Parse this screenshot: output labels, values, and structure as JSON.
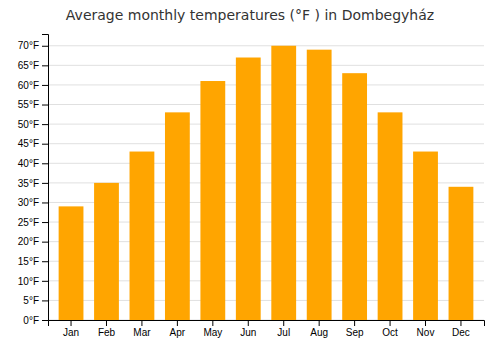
{
  "chart_data": {
    "type": "bar",
    "title": "Average monthly temperatures (°F ) in Dombegyház",
    "categories": [
      "Jan",
      "Feb",
      "Mar",
      "Apr",
      "May",
      "Jun",
      "Jul",
      "Aug",
      "Sep",
      "Oct",
      "Nov",
      "Dec"
    ],
    "values": [
      29,
      35,
      43,
      53,
      61,
      67,
      70,
      69,
      63,
      53,
      43,
      34
    ],
    "color": "#FFA500",
    "ylim": [
      0,
      73
    ],
    "yticks": [
      {
        "value": 0,
        "label": "0°F"
      },
      {
        "value": 5,
        "label": "5°F"
      },
      {
        "value": 10,
        "label": "10°F"
      },
      {
        "value": 15,
        "label": "15°F"
      },
      {
        "value": 20,
        "label": "20°F"
      },
      {
        "value": 25,
        "label": "25°F"
      },
      {
        "value": 30,
        "label": "30°F"
      },
      {
        "value": 35,
        "label": "35°F"
      },
      {
        "value": 40,
        "label": "40°F"
      },
      {
        "value": 45,
        "label": "45°F"
      },
      {
        "value": 50,
        "label": "50°F"
      },
      {
        "value": 55,
        "label": "55°F"
      },
      {
        "value": 60,
        "label": "60°F"
      },
      {
        "value": 65,
        "label": "65°F"
      },
      {
        "value": 70,
        "label": "70°F"
      }
    ],
    "grid": true
  }
}
